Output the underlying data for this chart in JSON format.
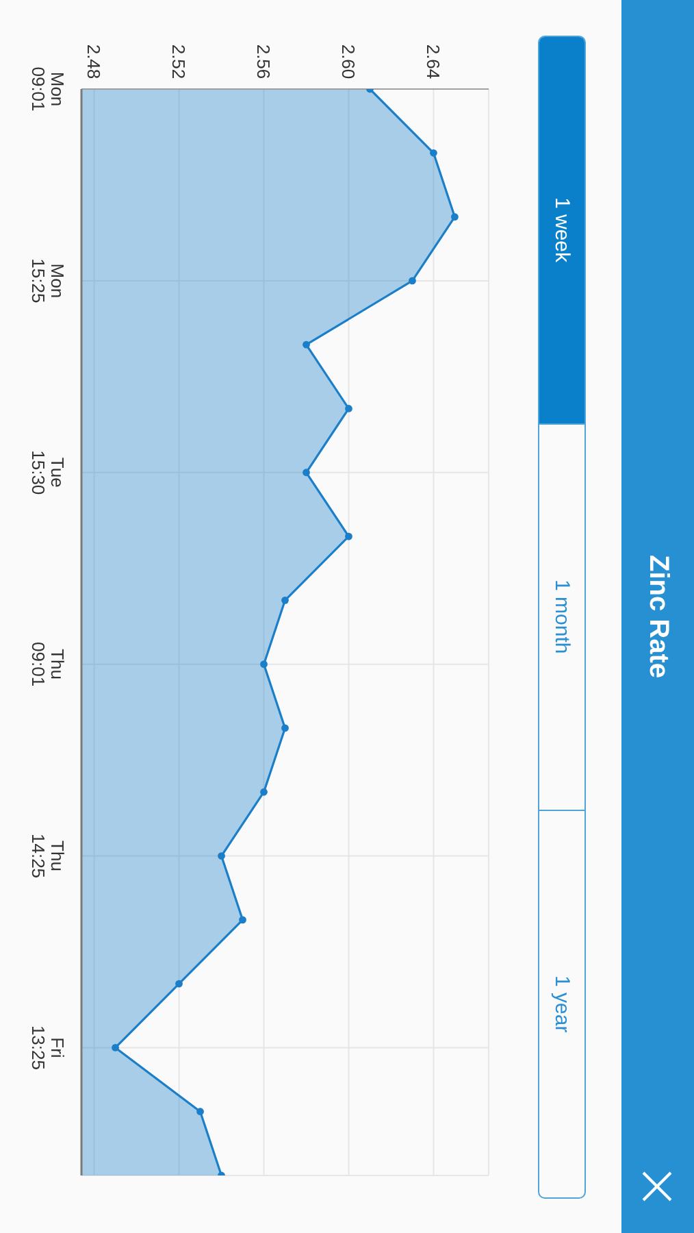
{
  "chart_data": {
    "type": "area",
    "title": "Zinc Rate",
    "orientation": "horizontal",
    "categories": [
      "Mon\n09:01",
      null,
      null,
      "Mon\n15:25",
      null,
      null,
      "Tue\n15:30",
      null,
      null,
      "Thu\n09:01",
      null,
      null,
      "Thu\n14:25",
      null,
      null,
      "Fri\n13:25",
      null,
      null
    ],
    "values": [
      2.61,
      2.64,
      2.65,
      2.63,
      2.58,
      2.6,
      2.58,
      2.6,
      2.57,
      2.56,
      2.57,
      2.56,
      2.54,
      2.55,
      2.52,
      2.49,
      2.53,
      2.54
    ],
    "color": "#1a7fc8",
    "xlim": [
      2.474,
      2.666
    ],
    "xticks": [
      2.48,
      2.52,
      2.56,
      {
        "value": 2.6,
        "label": "2.60"
      },
      2.64
    ],
    "grid": true,
    "marker": "circle",
    "annotations": [
      "1 week",
      "1 month",
      "1 year"
    ]
  }
}
